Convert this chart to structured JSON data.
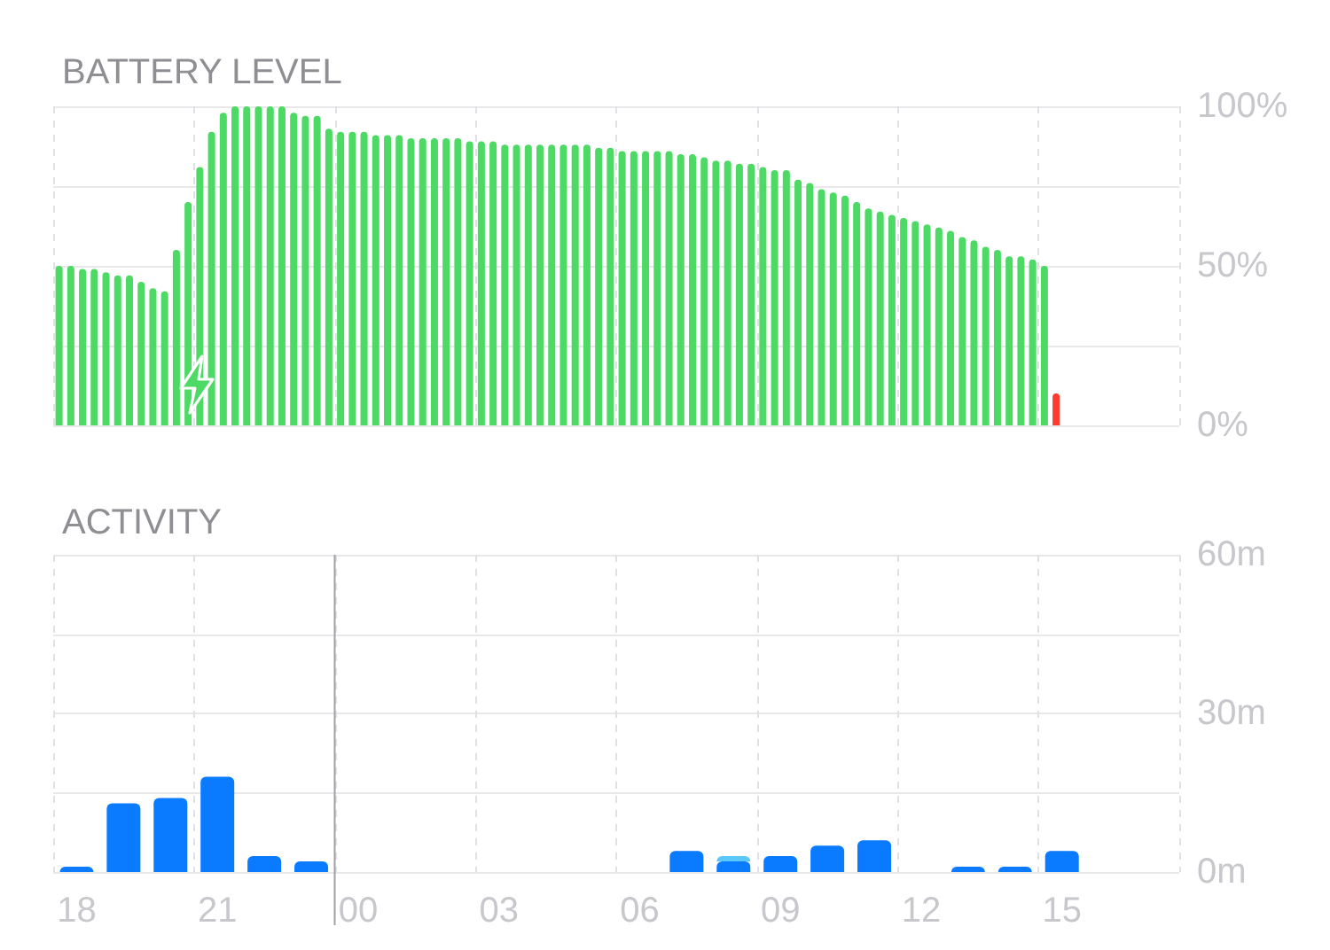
{
  "chart_data": [
    {
      "type": "bar",
      "title": "BATTERY LEVEL",
      "categories": [
        null,
        null,
        null,
        null,
        null,
        null,
        null,
        null,
        null,
        null,
        null,
        null,
        null,
        null,
        null,
        null,
        null,
        null,
        null,
        null,
        null,
        null,
        null,
        null,
        null,
        null,
        null,
        null,
        null,
        null,
        null,
        null,
        null,
        null,
        null,
        null,
        null,
        null,
        null,
        null,
        null,
        null,
        null,
        null,
        null,
        null,
        null,
        null,
        null,
        null,
        null,
        null,
        null,
        null,
        null,
        null,
        null,
        null,
        null,
        null,
        null,
        null,
        null,
        null,
        null,
        null,
        null,
        null,
        null,
        null,
        null,
        null,
        null,
        null,
        null,
        null,
        null,
        null,
        null,
        null,
        null,
        null,
        null,
        null,
        null,
        null,
        null,
        null,
        null,
        null,
        null,
        null,
        null,
        null,
        null,
        null
      ],
      "values": [
        50,
        50,
        49,
        49,
        48,
        47,
        47,
        45,
        43,
        42,
        55,
        70,
        81,
        92,
        98,
        100,
        100,
        100,
        100,
        100,
        98,
        97,
        97,
        93,
        92,
        92,
        92,
        91,
        91,
        91,
        90,
        90,
        90,
        90,
        90,
        89,
        89,
        89,
        88,
        88,
        88,
        88,
        88,
        88,
        88,
        88,
        87,
        87,
        86,
        86,
        86,
        86,
        86,
        85,
        85,
        84,
        83,
        83,
        82,
        82,
        81,
        80,
        80,
        77,
        76,
        74,
        73,
        72,
        70,
        68,
        67,
        66,
        65,
        64,
        63,
        62,
        61,
        59,
        58,
        56,
        55,
        53,
        53,
        52,
        50,
        10,
        null,
        null,
        null,
        null,
        null,
        null,
        null,
        null,
        null,
        null
      ],
      "colors": [
        "#4cd964",
        "#4cd964",
        "#4cd964",
        "#4cd964",
        "#4cd964",
        "#4cd964",
        "#4cd964",
        "#4cd964",
        "#4cd964",
        "#4cd964",
        "#4cd964",
        "#4cd964",
        "#4cd964",
        "#4cd964",
        "#4cd964",
        "#4cd964",
        "#4cd964",
        "#4cd964",
        "#4cd964",
        "#4cd964",
        "#4cd964",
        "#4cd964",
        "#4cd964",
        "#4cd964",
        "#4cd964",
        "#4cd964",
        "#4cd964",
        "#4cd964",
        "#4cd964",
        "#4cd964",
        "#4cd964",
        "#4cd964",
        "#4cd964",
        "#4cd964",
        "#4cd964",
        "#4cd964",
        "#4cd964",
        "#4cd964",
        "#4cd964",
        "#4cd964",
        "#4cd964",
        "#4cd964",
        "#4cd964",
        "#4cd964",
        "#4cd964",
        "#4cd964",
        "#4cd964",
        "#4cd964",
        "#4cd964",
        "#4cd964",
        "#4cd964",
        "#4cd964",
        "#4cd964",
        "#4cd964",
        "#4cd964",
        "#4cd964",
        "#4cd964",
        "#4cd964",
        "#4cd964",
        "#4cd964",
        "#4cd964",
        "#4cd964",
        "#4cd964",
        "#4cd964",
        "#4cd964",
        "#4cd964",
        "#4cd964",
        "#4cd964",
        "#4cd964",
        "#4cd964",
        "#4cd964",
        "#4cd964",
        "#4cd964",
        "#4cd964",
        "#4cd964",
        "#4cd964",
        "#4cd964",
        "#4cd964",
        "#4cd964",
        "#4cd964",
        "#4cd964",
        "#4cd964",
        "#4cd964",
        "#4cd964",
        "#4cd964",
        "#ff3b30",
        null,
        null,
        null,
        null,
        null,
        null,
        null,
        null,
        null,
        null
      ],
      "ylim": [
        0,
        100
      ],
      "yticks": [
        {
          "value": 0,
          "label": "0%"
        },
        {
          "value": 25,
          "label": null
        },
        {
          "value": 50,
          "label": "50%"
        },
        {
          "value": 75,
          "label": null
        },
        {
          "value": 100,
          "label": "100%"
        }
      ],
      "tick_labels": "y",
      "grid": true
    },
    {
      "type": "bar",
      "title": "ACTIVITY",
      "stacked": true,
      "categories": [
        "18",
        null,
        null,
        "21",
        null,
        null,
        "00",
        null,
        null,
        "03",
        null,
        null,
        "06",
        null,
        null,
        "09",
        null,
        null,
        "12",
        null,
        null,
        "15",
        null,
        null
      ],
      "series": [
        {
          "color": "#0a7aff",
          "values": [
            1,
            13,
            14,
            18,
            3,
            2,
            null,
            null,
            null,
            null,
            null,
            null,
            null,
            4,
            2,
            3,
            5,
            6,
            null,
            1,
            1,
            4,
            null,
            null
          ]
        },
        {
          "color": "#5ac8fa",
          "values": [
            null,
            null,
            null,
            null,
            null,
            null,
            null,
            null,
            null,
            null,
            null,
            null,
            null,
            null,
            1,
            null,
            null,
            null,
            null,
            null,
            null,
            null,
            null,
            null
          ]
        }
      ],
      "ylim": [
        0,
        60
      ],
      "yticks": [
        {
          "value": 0,
          "label": "0m"
        },
        {
          "value": 15,
          "label": null
        },
        {
          "value": 30,
          "label": "30m"
        },
        {
          "value": 45,
          "label": null
        },
        {
          "value": 60,
          "label": "60m"
        }
      ],
      "grid": true,
      "ref_lines": [
        {
          "axis": "x",
          "value": "00",
          "color": "#a0a0a5"
        }
      ]
    }
  ]
}
